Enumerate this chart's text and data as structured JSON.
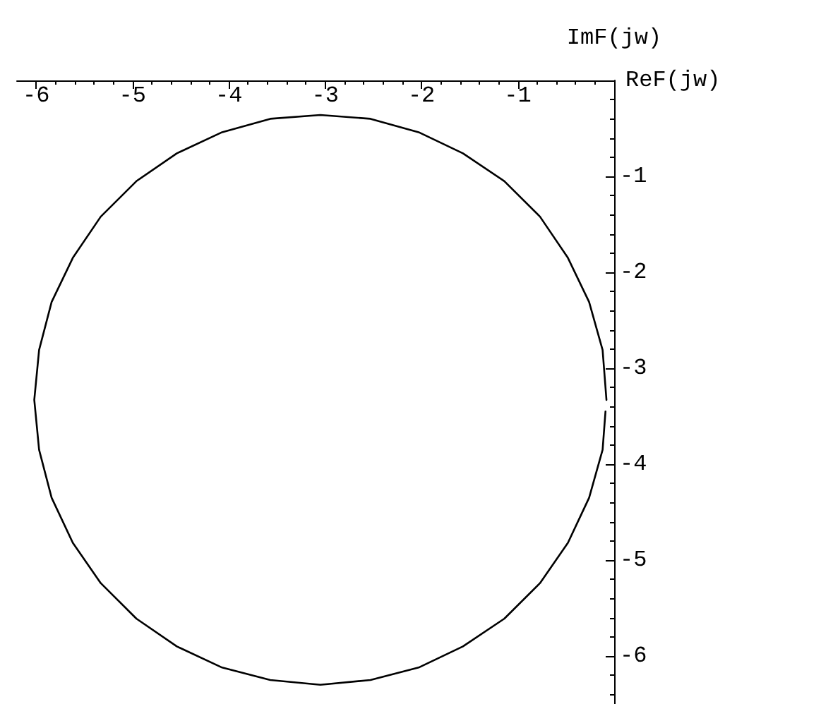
{
  "chart_data": {
    "type": "line",
    "xlabel": "ReF(jw)",
    "ylabel": "ImF(jw)",
    "xlim": [
      -6.2,
      0
    ],
    "ylim": [
      -6.5,
      0
    ],
    "xticks": [
      -6,
      -5,
      -4,
      -3,
      -2,
      -1
    ],
    "yticks": [
      -6,
      -5,
      -4,
      -3,
      -2,
      -1
    ],
    "grid": false,
    "marker": "none",
    "line_style": "solid",
    "series": [
      {
        "color": "#000000",
        "x": [
          -0.08,
          -0.12,
          -0.26,
          -0.48,
          -0.77,
          -1.14,
          -1.57,
          -2.03,
          -2.53,
          -3.05,
          -3.57,
          -4.07,
          -4.54,
          -4.96,
          -5.33,
          -5.62,
          -5.84,
          -5.97,
          -6.02,
          -5.97,
          -5.84,
          -5.62,
          -5.33,
          -4.96,
          -4.54,
          -4.07,
          -3.57,
          -3.05,
          -2.53,
          -2.03,
          -1.57,
          -1.14,
          -0.77,
          -0.48,
          -0.26,
          -0.12,
          -0.09
        ],
        "values": [
          -3.33,
          -2.81,
          -2.31,
          -1.85,
          -1.42,
          -1.05,
          -0.76,
          -0.54,
          -0.4,
          -0.36,
          -0.4,
          -0.54,
          -0.76,
          -1.05,
          -1.42,
          -1.85,
          -2.31,
          -2.81,
          -3.33,
          -3.85,
          -4.35,
          -4.82,
          -5.24,
          -5.61,
          -5.9,
          -6.12,
          -6.25,
          -6.3,
          -6.25,
          -6.12,
          -5.9,
          -5.61,
          -5.24,
          -4.82,
          -4.35,
          -3.85,
          -3.45
        ]
      }
    ]
  }
}
